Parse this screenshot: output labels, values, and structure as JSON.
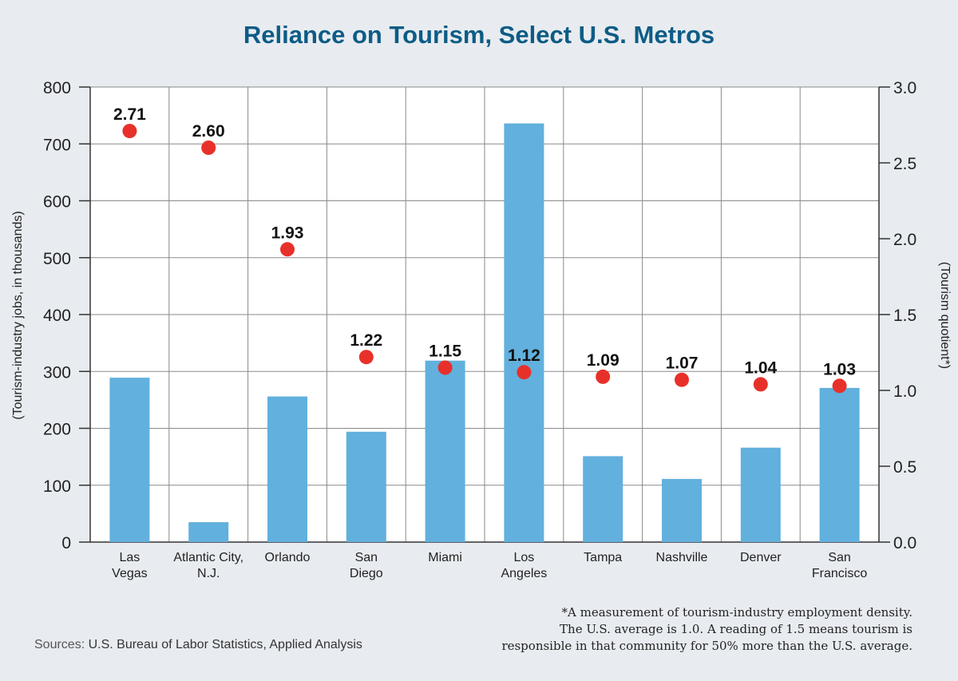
{
  "chart_data": {
    "type": "bar",
    "title": "Reliance on Tourism, Select U.S. Metros",
    "categories": [
      [
        "Las",
        "Vegas"
      ],
      [
        "Atlantic City,",
        "N.J."
      ],
      [
        "Orlando"
      ],
      [
        "San",
        "Diego"
      ],
      [
        "Miami"
      ],
      [
        "Los",
        "Angeles"
      ],
      [
        "Tampa"
      ],
      [
        "Nashville"
      ],
      [
        "Denver"
      ],
      [
        "San",
        "Francisco"
      ]
    ],
    "series": [
      {
        "type": "bar",
        "axis": "left",
        "values": [
          289,
          35,
          256,
          194,
          319,
          736,
          151,
          111,
          166,
          271
        ]
      },
      {
        "type": "scatter",
        "axis": "right",
        "values": [
          2.71,
          2.6,
          1.93,
          1.22,
          1.15,
          1.12,
          1.09,
          1.07,
          1.04,
          1.03
        ],
        "labels": [
          "2.71",
          "2.60",
          "1.93",
          "1.22",
          "1.15",
          "1.12",
          "1.09",
          "1.07",
          "1.04",
          "1.03"
        ]
      }
    ],
    "ylabel": "(Tourism-industry jobs, in thousands)",
    "ylim": [
      0,
      800
    ],
    "yticks": [
      "0",
      "100",
      "200",
      "300",
      "400",
      "500",
      "600",
      "700",
      "800"
    ],
    "y2label": "(Tourism quotient*)",
    "y2lim": [
      0,
      3
    ],
    "y2ticks": [
      "0.0",
      "0.5",
      "1.0",
      "1.5",
      "2.0",
      "2.5",
      "3.0"
    ],
    "grid": true,
    "colors": {
      "bar": "#62b0dd",
      "marker": "#e8302a",
      "title": "#0d5c86"
    }
  },
  "footnote": [
    "*A measurement of tourism-industry employment density.",
    "The U.S. average is 1.0. A reading of 1.5 means tourism is",
    "responsible in that community for 50% more than the U.S. average."
  ],
  "sources": {
    "label": "Sources:",
    "text": "U.S. Bureau of Labor Statistics, Applied Analysis"
  }
}
